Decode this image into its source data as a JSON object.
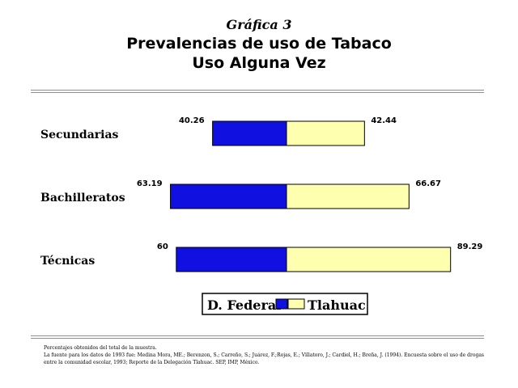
{
  "chart_title": {
    "line1": "Gráfica 3",
    "line2": "Prevalencias de uso de Tabaco",
    "line3": "Uso Alguna Vez"
  },
  "chart_data": {
    "type": "bar",
    "orientation": "horizontal-diverging",
    "categories": [
      "Secundarias",
      "Bachilleratos",
      "Técnicas"
    ],
    "series": [
      {
        "name": "D. Federal",
        "values": [
          40.26,
          63.19,
          60
        ],
        "labels": [
          "40.26",
          "63.19",
          "60"
        ],
        "color": "#1010e0"
      },
      {
        "name": "Tlahuac",
        "values": [
          42.44,
          66.67,
          89.29
        ],
        "labels": [
          "42.44",
          "66.67",
          "89.29"
        ],
        "color": "#ffffb0"
      }
    ],
    "legend_position": "bottom-center",
    "grid": false
  },
  "notes": {
    "line1": "Porcentajes obtenidos del total de la muestra.",
    "line2": "La fuente para los datos de 1993 fue: Medina Mora, ME.; Berenzon, S.; Carreño, S.; Juárez, F.;Rojas, E.; Villatoro, J.; Cardiel, H.; Breña, J. (1994). Encuesta sobre el uso de drogas entre la comunidad escolar, 1993; Reporte de la Delegación Tlahuac. SEP, IMP, México."
  }
}
